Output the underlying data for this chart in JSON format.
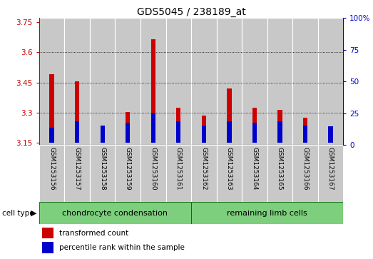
{
  "title": "GDS5045 / 238189_at",
  "samples": [
    "GSM1253156",
    "GSM1253157",
    "GSM1253158",
    "GSM1253159",
    "GSM1253160",
    "GSM1253161",
    "GSM1253162",
    "GSM1253163",
    "GSM1253164",
    "GSM1253165",
    "GSM1253166",
    "GSM1253167"
  ],
  "red_values": [
    3.49,
    3.455,
    3.175,
    3.305,
    3.665,
    3.325,
    3.285,
    3.42,
    3.325,
    3.315,
    3.275,
    3.165
  ],
  "blue_percentiles": [
    12,
    17,
    14,
    16,
    24,
    17,
    14,
    17,
    16,
    17,
    14,
    13
  ],
  "baseline": 3.15,
  "ylim_left": [
    3.14,
    3.77
  ],
  "ylim_right": [
    0,
    100
  ],
  "yticks_left": [
    3.15,
    3.3,
    3.45,
    3.6,
    3.75
  ],
  "yticks_right": [
    0,
    25,
    50,
    75,
    100
  ],
  "ytick_labels_left": [
    "3.15",
    "3.3",
    "3.45",
    "3.6",
    "3.75"
  ],
  "ytick_labels_right": [
    "0",
    "25",
    "50",
    "75",
    "100%"
  ],
  "grid_values": [
    3.3,
    3.45,
    3.6
  ],
  "red_color": "#cc0000",
  "blue_color": "#0000cc",
  "bar_bg_color": "#c8c8c8",
  "bg_color": "#ffffff",
  "group1_label": "chondrocyte condensation",
  "group2_label": "remaining limb cells",
  "group1_indices": [
    0,
    1,
    2,
    3,
    4,
    5
  ],
  "group2_indices": [
    6,
    7,
    8,
    9,
    10,
    11
  ],
  "group_color": "#7dce7d",
  "cell_type_label": "cell type",
  "arrow": "▶",
  "legend1": "transformed count",
  "legend2": "percentile rank within the sample",
  "bar_width": 0.18,
  "title_fontsize": 10,
  "tick_fontsize": 7.5,
  "sample_fontsize": 6.5,
  "group_fontsize": 8,
  "legend_fontsize": 7.5
}
